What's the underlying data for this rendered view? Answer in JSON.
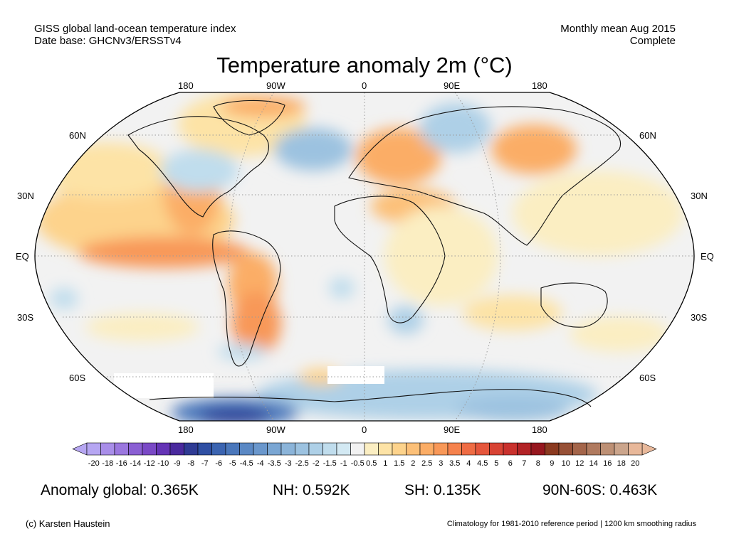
{
  "header": {
    "line1_left": "GISS global land-ocean temperature index",
    "line2_left": "Date base: GHCNv3/ERSSTv4",
    "line1_right": "Monthly mean Aug 2015",
    "line2_right": "Complete"
  },
  "title": "Temperature anomaly 2m (°C)",
  "axes": {
    "lon_top": [
      "180",
      "90W",
      "0",
      "90E",
      "180"
    ],
    "lon_bottom": [
      "180",
      "90W",
      "0",
      "90E",
      "180"
    ],
    "lat_left": [
      "60N",
      "30N",
      "EQ",
      "30S",
      "60S"
    ],
    "lat_right": [
      "60N",
      "30N",
      "EQ",
      "30S",
      "60S"
    ]
  },
  "colorbar": {
    "labels": [
      "-20",
      "-18",
      "-16",
      "-14",
      "-12",
      "-10",
      "-9",
      "-8",
      "-7",
      "-6",
      "-5",
      "-4.5",
      "-4",
      "-3.5",
      "-3",
      "-2.5",
      "-2",
      "-1.5",
      "-1",
      "-0.5",
      "0.5",
      "1",
      "1.5",
      "2",
      "2.5",
      "3",
      "3.5",
      "4",
      "4.5",
      "5",
      "6",
      "7",
      "8",
      "9",
      "10",
      "12",
      "14",
      "16",
      "18",
      "20"
    ],
    "colors": [
      "#b6a6f2",
      "#a98ee9",
      "#9b77df",
      "#8a5fd3",
      "#7a49c6",
      "#6534b6",
      "#4a2a9e",
      "#2f3b94",
      "#2f4fa3",
      "#3b64b1",
      "#4a77bb",
      "#5a88c4",
      "#6a97cc",
      "#7aa6d3",
      "#8bb4d9",
      "#9cc2e0",
      "#aed0e7",
      "#c0dded",
      "#d3e9f3",
      "#f2f2f2",
      "#fbeec2",
      "#fde3a6",
      "#fdd38c",
      "#fcc078",
      "#fbad66",
      "#f89858",
      "#f5824d",
      "#ef6c44",
      "#e5563c",
      "#d84334",
      "#c9312d",
      "#b22326",
      "#96171f",
      "#8b3a20",
      "#975036",
      "#a4654a",
      "#b07a5f",
      "#bd9075",
      "#cba58c",
      "#e8b89a"
    ]
  },
  "stats": {
    "global": "Anomaly global: 0.365K",
    "nh": "NH: 0.592K",
    "sh": "SH: 0.135K",
    "polar": "90N-60S: 0.463K"
  },
  "footer": {
    "left": "(c) Karsten Haustein",
    "right": "Climatology for 1981-2010 reference period | 1200 km smoothing radius"
  },
  "map_colors": {
    "background": "#f2f2f2",
    "warm_light": "#fbeec2",
    "warm_mid": "#fdd38c",
    "warm_strong": "#f89858",
    "cool_light": "#c0dded",
    "cool_mid": "#9cc2e0",
    "cool_strong": "#3b64b1"
  }
}
